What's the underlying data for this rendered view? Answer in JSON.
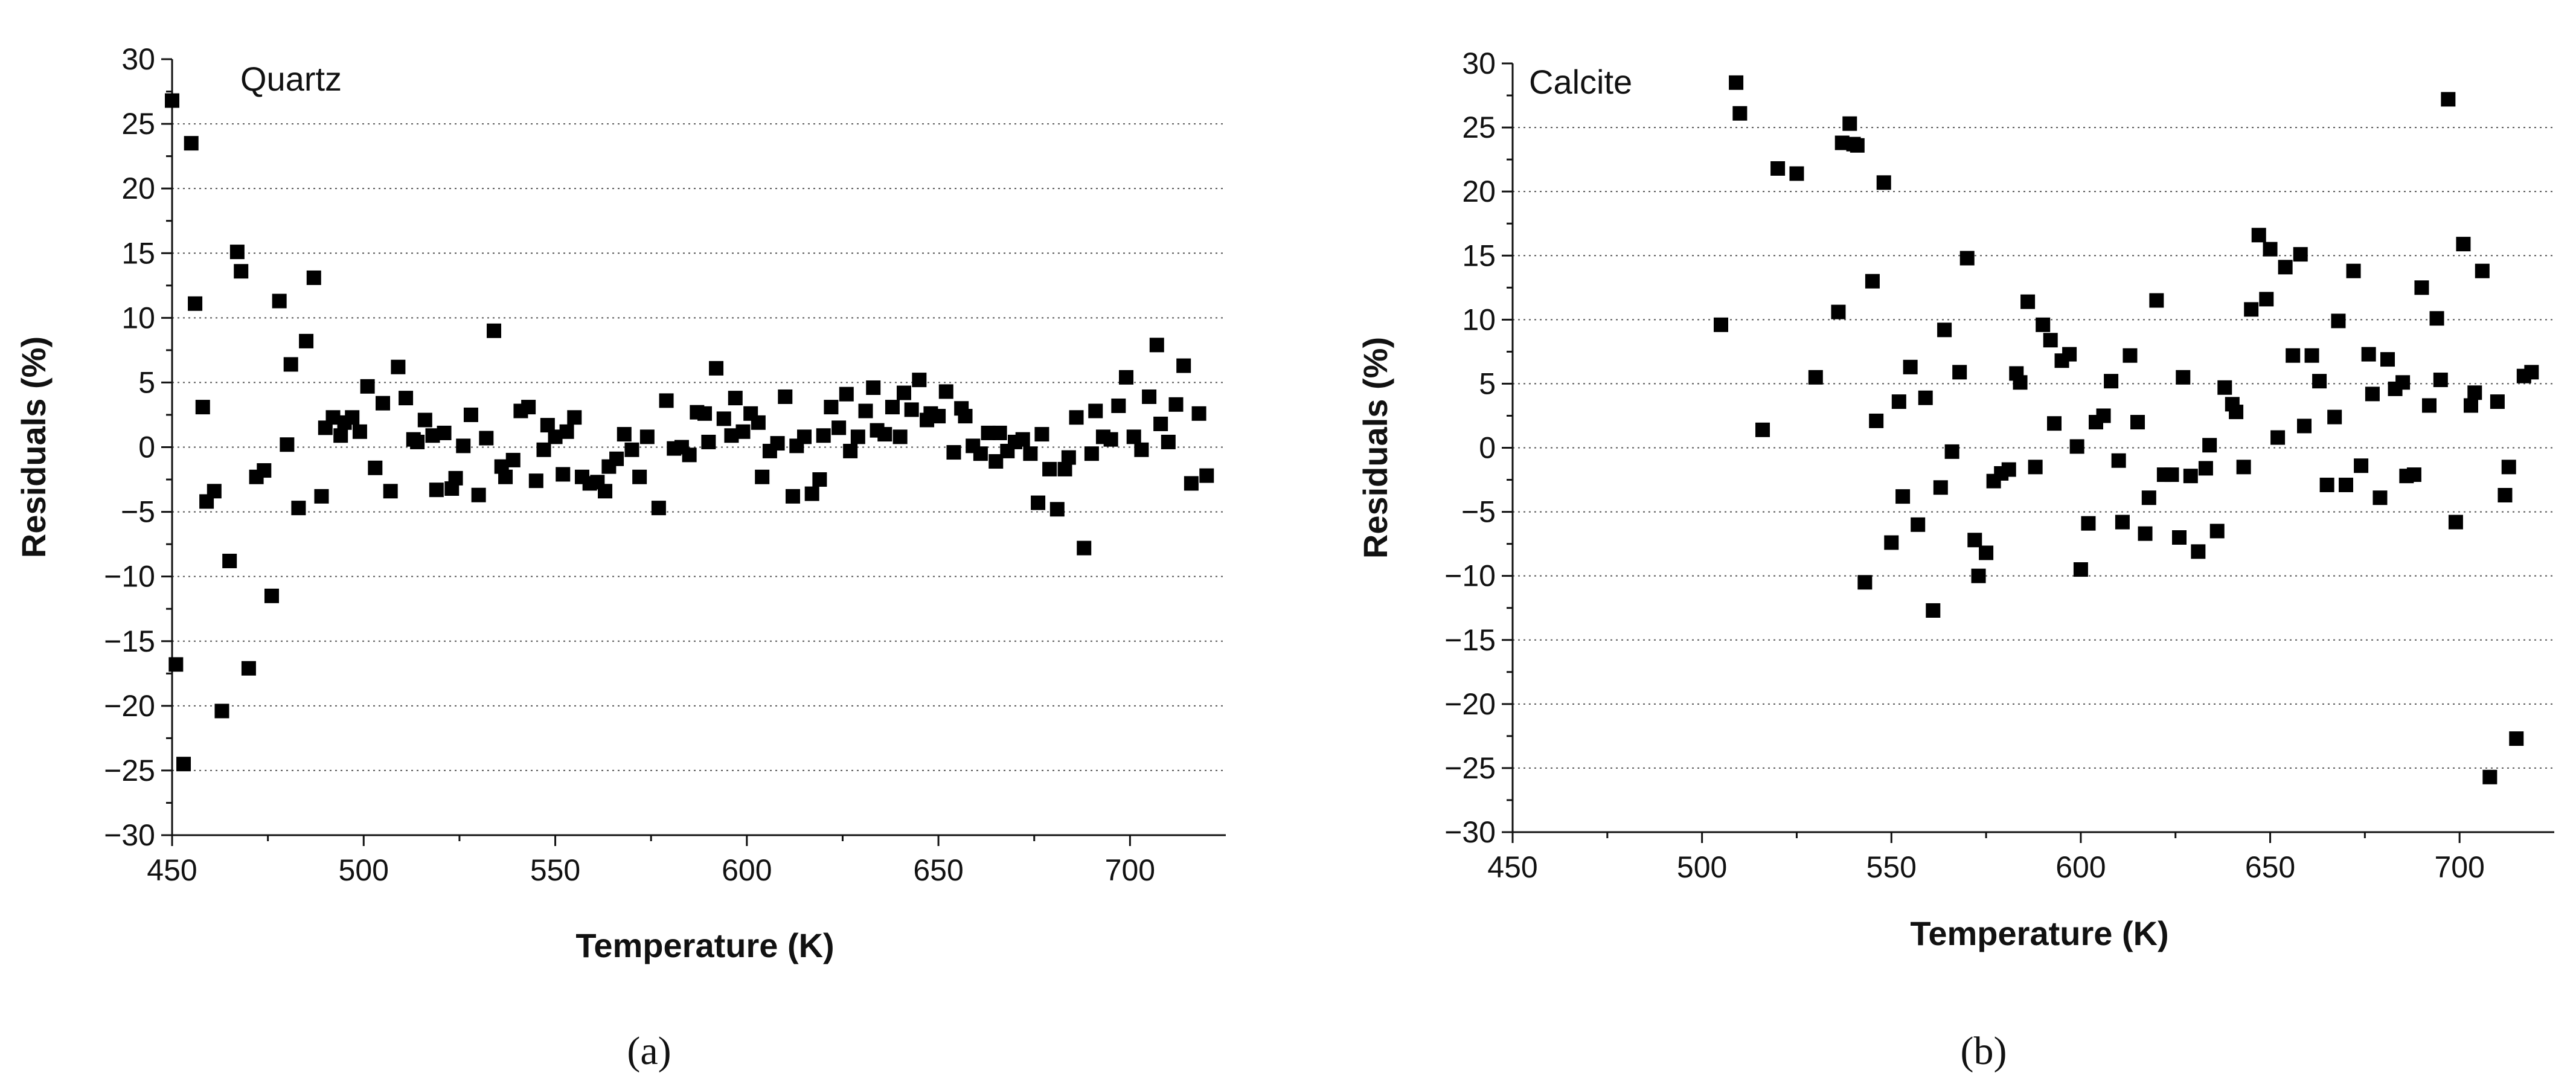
{
  "chart_data": [
    {
      "type": "scatter",
      "title": "Quartz",
      "xlabel": "Temperature (K)",
      "ylabel": "Residuals (%)",
      "xlim": [
        450,
        725
      ],
      "ylim": [
        -30,
        30
      ],
      "x_ticks": [
        450,
        500,
        550,
        600,
        650,
        700
      ],
      "y_ticks": [
        -30,
        -25,
        -20,
        -15,
        -10,
        -5,
        0,
        5,
        10,
        15,
        20,
        25,
        30
      ],
      "grid": true,
      "caption": "(a)",
      "points": [
        [
          450,
          26.8
        ],
        [
          451,
          -16.8
        ],
        [
          453,
          -24.5
        ],
        [
          455,
          23.5
        ],
        [
          456,
          11.1
        ],
        [
          458,
          3.1
        ],
        [
          459,
          -4.2
        ],
        [
          461,
          -3.4
        ],
        [
          463,
          -20.4
        ],
        [
          465,
          -8.8
        ],
        [
          467,
          15.1
        ],
        [
          468,
          13.6
        ],
        [
          470,
          -17.1
        ],
        [
          472,
          -2.3
        ],
        [
          474,
          -1.8
        ],
        [
          476,
          -11.5
        ],
        [
          478,
          11.3
        ],
        [
          480,
          0.2
        ],
        [
          481,
          6.4
        ],
        [
          483,
          -4.7
        ],
        [
          485,
          8.2
        ],
        [
          487,
          13.1
        ],
        [
          489,
          -3.8
        ],
        [
          490,
          1.5
        ],
        [
          492,
          2.3
        ],
        [
          494,
          0.9
        ],
        [
          495,
          1.9
        ],
        [
          497,
          2.3
        ],
        [
          499,
          1.2
        ],
        [
          501,
          4.7
        ],
        [
          503,
          -1.6
        ],
        [
          505,
          3.4
        ],
        [
          507,
          -3.4
        ],
        [
          509,
          6.2
        ],
        [
          511,
          3.8
        ],
        [
          513,
          0.6
        ],
        [
          514,
          0.4
        ],
        [
          516,
          2.1
        ],
        [
          518,
          0.9
        ],
        [
          519,
          -3.3
        ],
        [
          521,
          1.1
        ],
        [
          523,
          -3.2
        ],
        [
          524,
          -2.4
        ],
        [
          526,
          0.1
        ],
        [
          528,
          2.5
        ],
        [
          530,
          -3.7
        ],
        [
          532,
          0.7
        ],
        [
          534,
          9.0
        ],
        [
          536,
          -1.5
        ],
        [
          537,
          -2.3
        ],
        [
          539,
          -1.0
        ],
        [
          541,
          2.8
        ],
        [
          543,
          3.1
        ],
        [
          545,
          -2.6
        ],
        [
          547,
          -0.2
        ],
        [
          548,
          1.7
        ],
        [
          550,
          0.8
        ],
        [
          552,
          -2.1
        ],
        [
          553,
          1.2
        ],
        [
          555,
          2.3
        ],
        [
          557,
          -2.3
        ],
        [
          559,
          -2.8
        ],
        [
          561,
          -2.7
        ],
        [
          563,
          -3.4
        ],
        [
          564,
          -1.5
        ],
        [
          566,
          -0.9
        ],
        [
          568,
          1.0
        ],
        [
          570,
          -0.2
        ],
        [
          572,
          -2.3
        ],
        [
          574,
          0.8
        ],
        [
          577,
          -4.7
        ],
        [
          579,
          3.6
        ],
        [
          581,
          -0.1
        ],
        [
          583,
          0.0
        ],
        [
          585,
          -0.6
        ],
        [
          587,
          2.7
        ],
        [
          589,
          2.6
        ],
        [
          590,
          0.4
        ],
        [
          592,
          6.1
        ],
        [
          594,
          2.2
        ],
        [
          596,
          0.9
        ],
        [
          597,
          3.8
        ],
        [
          599,
          1.2
        ],
        [
          601,
          2.6
        ],
        [
          603,
          1.9
        ],
        [
          604,
          -2.3
        ],
        [
          606,
          -0.3
        ],
        [
          608,
          0.3
        ],
        [
          610,
          3.9
        ],
        [
          612,
          -3.8
        ],
        [
          613,
          0.1
        ],
        [
          615,
          0.8
        ],
        [
          617,
          -3.6
        ],
        [
          619,
          -2.5
        ],
        [
          620,
          0.9
        ],
        [
          622,
          3.1
        ],
        [
          624,
          1.5
        ],
        [
          626,
          4.1
        ],
        [
          627,
          -0.3
        ],
        [
          629,
          0.8
        ],
        [
          631,
          2.8
        ],
        [
          633,
          4.6
        ],
        [
          634,
          1.3
        ],
        [
          636,
          1.0
        ],
        [
          638,
          3.1
        ],
        [
          640,
          0.8
        ],
        [
          641,
          4.2
        ],
        [
          643,
          2.9
        ],
        [
          645,
          5.2
        ],
        [
          647,
          2.1
        ],
        [
          648,
          2.6
        ],
        [
          650,
          2.4
        ],
        [
          652,
          4.3
        ],
        [
          654,
          -0.4
        ],
        [
          656,
          3.0
        ],
        [
          657,
          2.4
        ],
        [
          659,
          0.1
        ],
        [
          661,
          -0.5
        ],
        [
          663,
          1.1
        ],
        [
          665,
          -1.1
        ],
        [
          666,
          1.1
        ],
        [
          668,
          -0.3
        ],
        [
          670,
          0.4
        ],
        [
          672,
          0.6
        ],
        [
          674,
          -0.5
        ],
        [
          676,
          -4.3
        ],
        [
          677,
          1.0
        ],
        [
          679,
          -1.7
        ],
        [
          681,
          -4.8
        ],
        [
          683,
          -1.7
        ],
        [
          684,
          -0.8
        ],
        [
          686,
          2.3
        ],
        [
          688,
          -7.8
        ],
        [
          690,
          -0.5
        ],
        [
          691,
          2.8
        ],
        [
          693,
          0.8
        ],
        [
          695,
          0.6
        ],
        [
          697,
          3.2
        ],
        [
          699,
          5.4
        ],
        [
          701,
          0.8
        ],
        [
          703,
          -0.2
        ],
        [
          705,
          3.9
        ],
        [
          707,
          7.9
        ],
        [
          708,
          1.8
        ],
        [
          710,
          0.4
        ],
        [
          712,
          3.3
        ],
        [
          714,
          6.3
        ],
        [
          716,
          -2.8
        ],
        [
          718,
          2.6
        ],
        [
          720,
          -2.2
        ]
      ]
    },
    {
      "type": "scatter",
      "title": "Calcite",
      "xlabel": "Temperature (K)",
      "ylabel": "Residuals (%)",
      "xlim": [
        450,
        725
      ],
      "ylim": [
        -30,
        30
      ],
      "x_ticks": [
        450,
        500,
        550,
        600,
        650,
        700
      ],
      "y_ticks": [
        -30,
        -25,
        -20,
        -15,
        -10,
        -5,
        0,
        5,
        10,
        15,
        20,
        25,
        30
      ],
      "grid": true,
      "caption": "(b)",
      "points": [
        [
          505,
          9.6
        ],
        [
          509,
          28.5
        ],
        [
          510,
          26.1
        ],
        [
          516,
          1.4
        ],
        [
          520,
          21.8
        ],
        [
          525,
          21.4
        ],
        [
          530,
          5.5
        ],
        [
          536,
          10.6
        ],
        [
          537,
          23.8
        ],
        [
          539,
          25.3
        ],
        [
          540,
          23.7
        ],
        [
          541,
          23.6
        ],
        [
          543,
          -10.5
        ],
        [
          545,
          13.0
        ],
        [
          546,
          2.1
        ],
        [
          548,
          20.7
        ],
        [
          550,
          -7.4
        ],
        [
          552,
          3.6
        ],
        [
          553,
          -3.8
        ],
        [
          555,
          6.3
        ],
        [
          557,
          -6.0
        ],
        [
          559,
          3.9
        ],
        [
          561,
          -12.7
        ],
        [
          563,
          -3.1
        ],
        [
          564,
          9.2
        ],
        [
          566,
          -0.3
        ],
        [
          568,
          5.9
        ],
        [
          570,
          14.8
        ],
        [
          572,
          -7.2
        ],
        [
          573,
          -10.0
        ],
        [
          575,
          -8.2
        ],
        [
          577,
          -2.6
        ],
        [
          579,
          -2.0
        ],
        [
          581,
          -1.7
        ],
        [
          583,
          5.8
        ],
        [
          584,
          5.1
        ],
        [
          586,
          11.4
        ],
        [
          588,
          -1.5
        ],
        [
          590,
          9.6
        ],
        [
          592,
          8.4
        ],
        [
          593,
          1.9
        ],
        [
          595,
          6.8
        ],
        [
          597,
          7.3
        ],
        [
          599,
          0.1
        ],
        [
          600,
          -9.5
        ],
        [
          602,
          -5.9
        ],
        [
          604,
          2.0
        ],
        [
          606,
          2.5
        ],
        [
          608,
          5.2
        ],
        [
          610,
          -1.0
        ],
        [
          611,
          -5.8
        ],
        [
          613,
          7.2
        ],
        [
          615,
          2.0
        ],
        [
          617,
          -6.7
        ],
        [
          618,
          -3.9
        ],
        [
          620,
          11.5
        ],
        [
          622,
          -2.1
        ],
        [
          624,
          -2.1
        ],
        [
          626,
          -7.0
        ],
        [
          627,
          5.5
        ],
        [
          629,
          -2.2
        ],
        [
          631,
          -8.1
        ],
        [
          633,
          -1.6
        ],
        [
          634,
          0.2
        ],
        [
          636,
          -6.5
        ],
        [
          638,
          4.7
        ],
        [
          640,
          3.4
        ],
        [
          641,
          2.8
        ],
        [
          643,
          -1.5
        ],
        [
          645,
          10.8
        ],
        [
          647,
          16.6
        ],
        [
          649,
          11.6
        ],
        [
          650,
          15.5
        ],
        [
          652,
          0.8
        ],
        [
          654,
          14.1
        ],
        [
          656,
          7.2
        ],
        [
          658,
          15.1
        ],
        [
          659,
          1.7
        ],
        [
          661,
          7.2
        ],
        [
          663,
          5.2
        ],
        [
          665,
          -2.9
        ],
        [
          667,
          2.4
        ],
        [
          668,
          9.9
        ],
        [
          670,
          -2.9
        ],
        [
          672,
          13.8
        ],
        [
          674,
          -1.4
        ],
        [
          676,
          7.3
        ],
        [
          677,
          4.2
        ],
        [
          679,
          -3.9
        ],
        [
          681,
          6.9
        ],
        [
          683,
          4.6
        ],
        [
          685,
          5.1
        ],
        [
          686,
          -2.2
        ],
        [
          688,
          -2.1
        ],
        [
          690,
          12.5
        ],
        [
          692,
          3.3
        ],
        [
          694,
          10.1
        ],
        [
          695,
          5.3
        ],
        [
          697,
          27.2
        ],
        [
          699,
          -5.8
        ],
        [
          701,
          15.9
        ],
        [
          703,
          3.3
        ],
        [
          704,
          4.3
        ],
        [
          706,
          13.8
        ],
        [
          708,
          -25.7
        ],
        [
          710,
          3.6
        ],
        [
          712,
          -3.7
        ],
        [
          713,
          -1.5
        ],
        [
          715,
          -22.7
        ],
        [
          717,
          5.6
        ],
        [
          719,
          5.9
        ]
      ]
    }
  ]
}
